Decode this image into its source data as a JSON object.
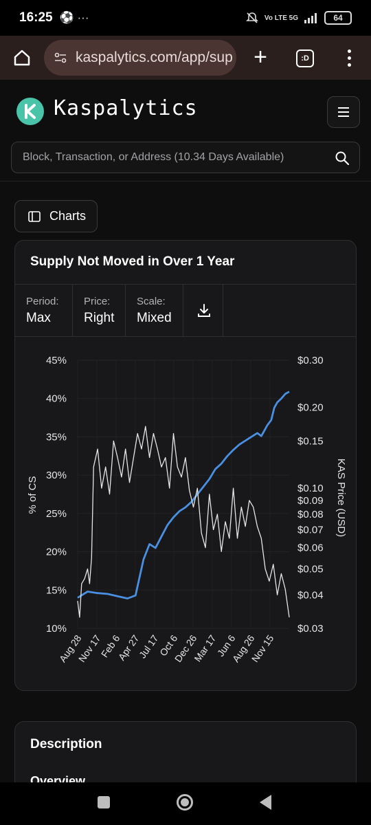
{
  "status": {
    "time": "16:25",
    "left_icons": "⚽ ···",
    "network": "Vo LTE 5G",
    "battery": "64"
  },
  "browser": {
    "url": "kaspalytics.com/app/sup",
    "tab_label": ":D"
  },
  "site": {
    "brand": "Kaspalytics",
    "search_placeholder": "Block, Transaction, or Address (10.34 Days Available)"
  },
  "charts_button": {
    "label": "Charts"
  },
  "chart_card": {
    "title": "Supply Not Moved in Over 1 Year",
    "controls": [
      {
        "label": "Period:",
        "value": "Max"
      },
      {
        "label": "Price:",
        "value": "Right"
      },
      {
        "label": "Scale:",
        "value": "Mixed"
      }
    ]
  },
  "chart_data": {
    "type": "line",
    "title": "Supply Not Moved in Over 1 Year",
    "ylabel": "% of CS",
    "y2label": "KAS Price (USD)",
    "y_ticks": [
      "45%",
      "40%",
      "35%",
      "30%",
      "25%",
      "20%",
      "15%",
      "10%"
    ],
    "ylim": [
      10,
      45
    ],
    "y2_scale": "log",
    "y2_ticks": [
      "$0.30",
      "$0.20",
      "$0.15",
      "$0.10",
      "$0.09",
      "$0.08",
      "$0.07",
      "$0.06",
      "$0.05",
      "$0.04",
      "$0.03"
    ],
    "y2_tick_values": [
      0.3,
      0.2,
      0.15,
      0.1,
      0.09,
      0.08,
      0.07,
      0.06,
      0.05,
      0.04,
      0.03
    ],
    "y2lim": [
      0.03,
      0.3
    ],
    "x_ticks": [
      "Aug 28",
      "Nov 17",
      "Feb 6",
      "Apr 27",
      "Jul 17",
      "Oct 6",
      "Dec 26",
      "Mar 17",
      "Jun 6",
      "Aug 26",
      "Nov 15"
    ],
    "series": [
      {
        "axis": "left",
        "color": "#4a90e2",
        "x": [
          0,
          0.5,
          1,
          1.5,
          2,
          2.5,
          2.9,
          3,
          3.3,
          3.6,
          3.9,
          4.2,
          4.5,
          4.8,
          5.1,
          5.4,
          5.7,
          6,
          6.3,
          6.6,
          6.9,
          7.2,
          7.5,
          7.8,
          8.1,
          8.4,
          8.7,
          9,
          9.2,
          9.35,
          9.5,
          9.7,
          9.85,
          10,
          10.2,
          10.4,
          10.6
        ],
        "values": [
          14,
          14.8,
          14.6,
          14.5,
          14.2,
          13.9,
          14.3,
          15.5,
          19,
          21,
          20.5,
          22,
          23.5,
          24.5,
          25.3,
          25.8,
          26.5,
          27.5,
          28.5,
          29.5,
          30.8,
          31.5,
          32.5,
          33.3,
          34,
          34.5,
          35,
          35.5,
          35.1,
          35.8,
          36.5,
          37.2,
          38.8,
          39.5,
          40,
          40.6,
          40.9
        ]
      },
      {
        "axis": "right",
        "color": "#e6e6e6",
        "x": [
          0,
          0.1,
          0.2,
          0.35,
          0.5,
          0.6,
          0.7,
          0.8,
          1,
          1.2,
          1.4,
          1.6,
          1.8,
          2.0,
          2.2,
          2.4,
          2.6,
          2.8,
          3.0,
          3.2,
          3.4,
          3.6,
          3.8,
          4.0,
          4.2,
          4.4,
          4.6,
          4.8,
          5.0,
          5.2,
          5.4,
          5.6,
          5.8,
          6.0,
          6.2,
          6.4,
          6.6,
          6.8,
          7.0,
          7.2,
          7.4,
          7.6,
          7.8,
          8.0,
          8.2,
          8.4,
          8.6,
          8.8,
          9.0,
          9.2,
          9.4,
          9.6,
          9.8,
          10.0,
          10.2,
          10.4,
          10.6
        ],
        "values": [
          0.038,
          0.033,
          0.044,
          0.046,
          0.05,
          0.044,
          0.055,
          0.12,
          0.14,
          0.1,
          0.12,
          0.095,
          0.15,
          0.13,
          0.11,
          0.14,
          0.105,
          0.13,
          0.16,
          0.14,
          0.17,
          0.13,
          0.16,
          0.14,
          0.12,
          0.13,
          0.1,
          0.16,
          0.12,
          0.11,
          0.13,
          0.098,
          0.085,
          0.1,
          0.068,
          0.06,
          0.095,
          0.07,
          0.08,
          0.058,
          0.075,
          0.065,
          0.1,
          0.065,
          0.085,
          0.072,
          0.09,
          0.085,
          0.072,
          0.065,
          0.05,
          0.045,
          0.052,
          0.04,
          0.048,
          0.042,
          0.033
        ]
      }
    ]
  },
  "description": {
    "title": "Description",
    "subtitle": "Overview"
  }
}
